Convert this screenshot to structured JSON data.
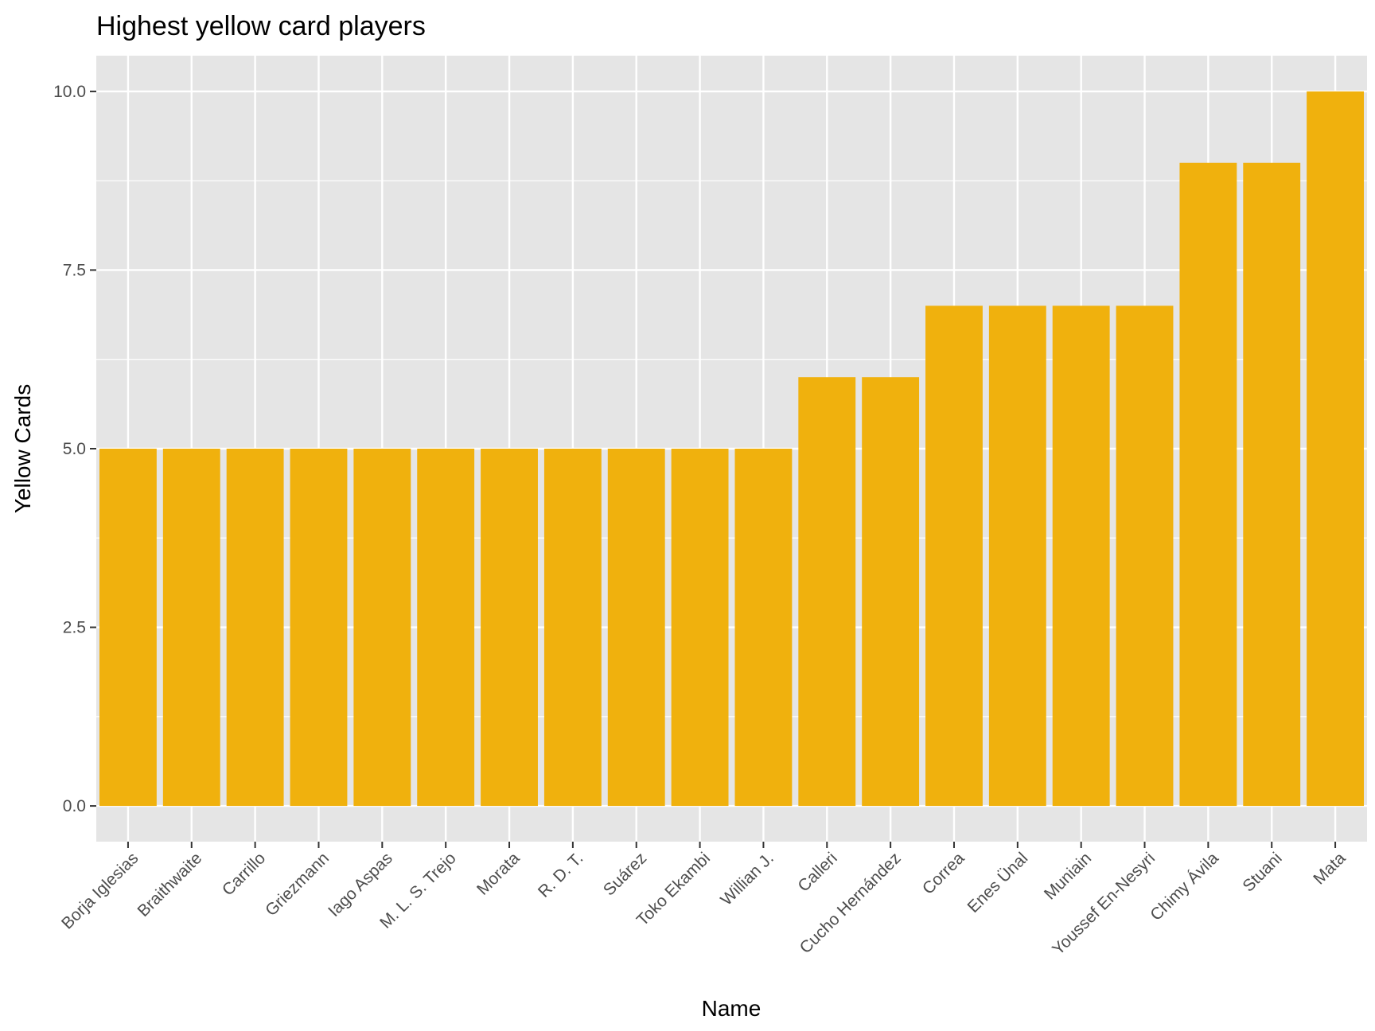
{
  "chart_data": {
    "type": "bar",
    "title": "Highest yellow card players",
    "xlabel": "Name",
    "ylabel": "Yellow Cards",
    "categories": [
      "Borja Iglesias",
      "Braithwaite",
      "Carrillo",
      "Griezmann",
      "Iago Aspas",
      "M. L. S. Trejo",
      "Morata",
      "R. D. T.",
      "Suárez",
      "Toko Ekambi",
      "Willian J.",
      "Calleri",
      "Cucho Hernández",
      "Correa",
      "Enes Ünal",
      "Muniain",
      "Youssef En-Nesyri",
      "Chimy Ávila",
      "Stuani",
      "Mata"
    ],
    "values": [
      5,
      5,
      5,
      5,
      5,
      5,
      5,
      5,
      5,
      5,
      5,
      6,
      6,
      7,
      7,
      7,
      7,
      9,
      9,
      10
    ],
    "ylim": [
      -0.5,
      10.5
    ],
    "yticks": [
      "0.0",
      "2.5",
      "5.0",
      "7.5",
      "10.0"
    ],
    "bar_color": "#F0B10D",
    "panel_color": "#E5E5E5",
    "grid": true,
    "legend": "none"
  }
}
